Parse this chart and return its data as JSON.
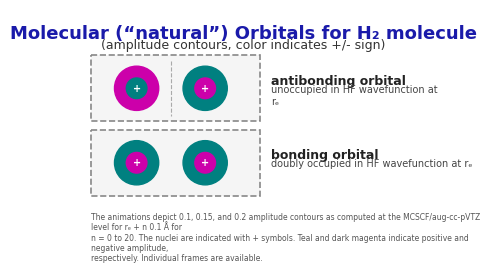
{
  "title": "Molecular (“natural”) Orbitals for H₂ molecule",
  "subtitle": "(amplitude contours, color indicates +/- sign)",
  "title_color": "#1a1aaa",
  "subtitle_color": "#333333",
  "antibonding_label": "antibonding orbital",
  "antibonding_sub": "unoccupied in HF wavefunction at\nrₑ",
  "bonding_label": "bonding orbital",
  "bonding_sub": "doubly occupied in HF wavefunction at rₑ",
  "footer": "The animations depict 0.1, 0.15, and 0.2 amplitude contours as computed at the MCSCF/aug-cc-pVTZ  level for rₑ + n 0.1 Å for\nn = 0 to 20. The nuclei are indicated with + symbols. Teal and dark magenta indicate positive and negative amplitude,\nrespectively. Individual frames are available.",
  "box1_color": "#dddddd",
  "box2_color": "#dddddd",
  "bg_color": "#ffffff",
  "teal": "#008080",
  "magenta": "#cc00aa",
  "orbital_bg": "#e8e8e8"
}
